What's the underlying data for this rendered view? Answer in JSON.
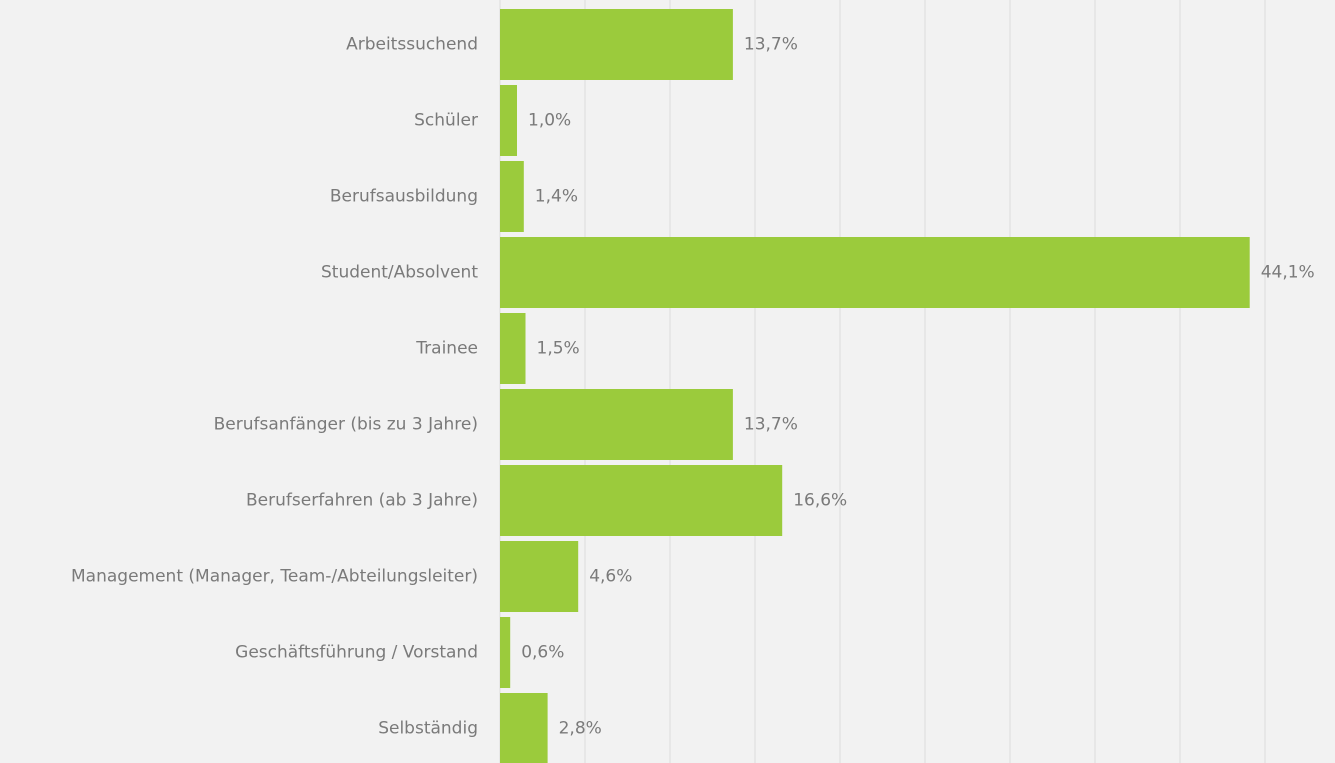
{
  "chart_data": {
    "type": "hbar",
    "categories": [
      "Arbeitssuchend",
      "Schüler",
      "Berufsausbildung",
      "Student/Absolvent",
      "Trainee",
      "Berufsanfänger (bis zu 3 Jahre)",
      "Berufserfahren (ab 3 Jahre)",
      "Management (Manager, Team-/Abteilungsleiter)",
      "Geschäftsführung / Vorstand",
      "Selbständig"
    ],
    "values": [
      13.7,
      1.0,
      1.4,
      44.1,
      1.5,
      13.7,
      16.6,
      4.6,
      0.6,
      2.8
    ],
    "value_labels": [
      "13,7%",
      "1,0%",
      "1,4%",
      "44,1%",
      "1,5%",
      "13,7%",
      "16,6%",
      "4,6%",
      "0,6%",
      "2,8%"
    ],
    "color": "#9bcb3c",
    "xlim": [
      0,
      45
    ],
    "xticks": [
      0,
      5,
      10,
      15,
      20,
      25,
      30,
      35,
      40,
      45
    ],
    "grid": true
  }
}
